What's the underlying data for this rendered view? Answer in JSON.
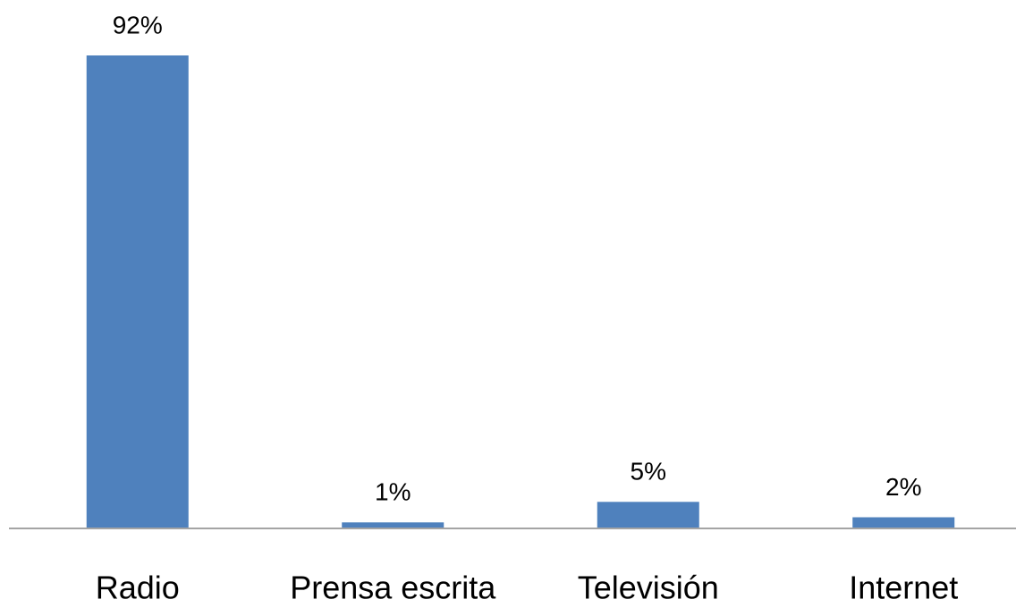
{
  "chart_data": {
    "type": "bar",
    "categories": [
      "Radio",
      "Prensa escrita",
      "Televisión",
      "Internet"
    ],
    "values": [
      92,
      1,
      5,
      2
    ],
    "value_labels": [
      "92%",
      "1%",
      "5%",
      "2%"
    ],
    "color": "#4f81bd"
  }
}
